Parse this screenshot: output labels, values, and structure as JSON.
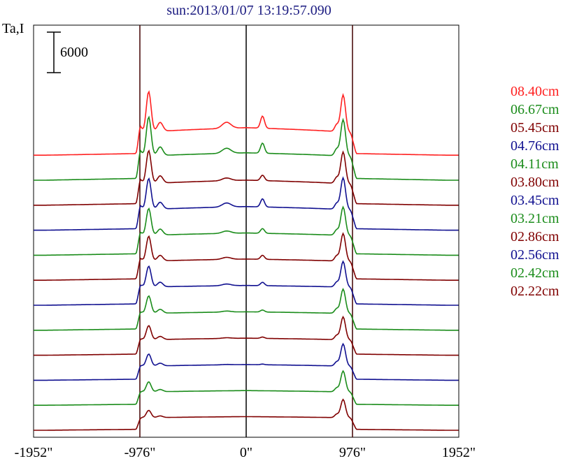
{
  "chart_data": {
    "type": "line",
    "title": "sun:2013/01/07 13:19:57.090",
    "ylabel": "Ta,I",
    "scale_bar_label": "6000",
    "xlim": [
      -1952,
      1952
    ],
    "x_ticks": [
      {
        "value": -1952,
        "label": "-1952\""
      },
      {
        "value": -976,
        "label": "-976\""
      },
      {
        "value": 0,
        "label": "0\""
      },
      {
        "value": 976,
        "label": "976\""
      },
      {
        "value": 1952,
        "label": "1952\""
      }
    ],
    "vertical_lines": [
      -976,
      0,
      976
    ],
    "scale_bar_value": 6000,
    "series": [
      {
        "name": "08.40cm",
        "color": "#ff2020",
        "peak_left": 9200,
        "peak_right": 8700,
        "limb": 3200,
        "center": 4800,
        "center_bump": 1800
      },
      {
        "name": "06.67cm",
        "color": "#1a8c1a",
        "peak_left": 9200,
        "peak_right": 8800,
        "limb": 3400,
        "center": 4600,
        "center_bump": 1500
      },
      {
        "name": "05.45cm",
        "color": "#800000",
        "peak_left": 7900,
        "peak_right": 7700,
        "limb": 3000,
        "center": 4300,
        "center_bump": 800
      },
      {
        "name": "04.76cm",
        "color": "#101090",
        "peak_left": 7500,
        "peak_right": 7600,
        "limb": 2900,
        "center": 4000,
        "center_bump": 1200
      },
      {
        "name": "04.11cm",
        "color": "#1a8c1a",
        "peak_left": 6800,
        "peak_right": 7000,
        "limb": 2800,
        "center": 3700,
        "center_bump": 700
      },
      {
        "name": "03.80cm",
        "color": "#800000",
        "peak_left": 6400,
        "peak_right": 6800,
        "limb": 2700,
        "center": 3500,
        "center_bump": 600
      },
      {
        "name": "03.45cm",
        "color": "#101090",
        "peak_left": 5700,
        "peak_right": 6400,
        "limb": 2600,
        "center": 3200,
        "center_bump": 500
      },
      {
        "name": "03.21cm",
        "color": "#1a8c1a",
        "peak_left": 5000,
        "peak_right": 6000,
        "limb": 2400,
        "center": 3000,
        "center_bump": 300
      },
      {
        "name": "02.86cm",
        "color": "#800000",
        "peak_left": 4300,
        "peak_right": 5600,
        "limb": 2200,
        "center": 2800,
        "center_bump": 200
      },
      {
        "name": "02.56cm",
        "color": "#101090",
        "peak_left": 3800,
        "peak_right": 5300,
        "limb": 2000,
        "center": 2600,
        "center_bump": 100
      },
      {
        "name": "02.42cm",
        "color": "#1a8c1a",
        "peak_left": 3400,
        "peak_right": 5000,
        "limb": 1900,
        "center": 2400,
        "center_bump": 0
      },
      {
        "name": "02.22cm",
        "color": "#800000",
        "peak_left": 2900,
        "peak_right": 4500,
        "limb": 1800,
        "center": 2200,
        "center_bump": 0
      }
    ]
  }
}
